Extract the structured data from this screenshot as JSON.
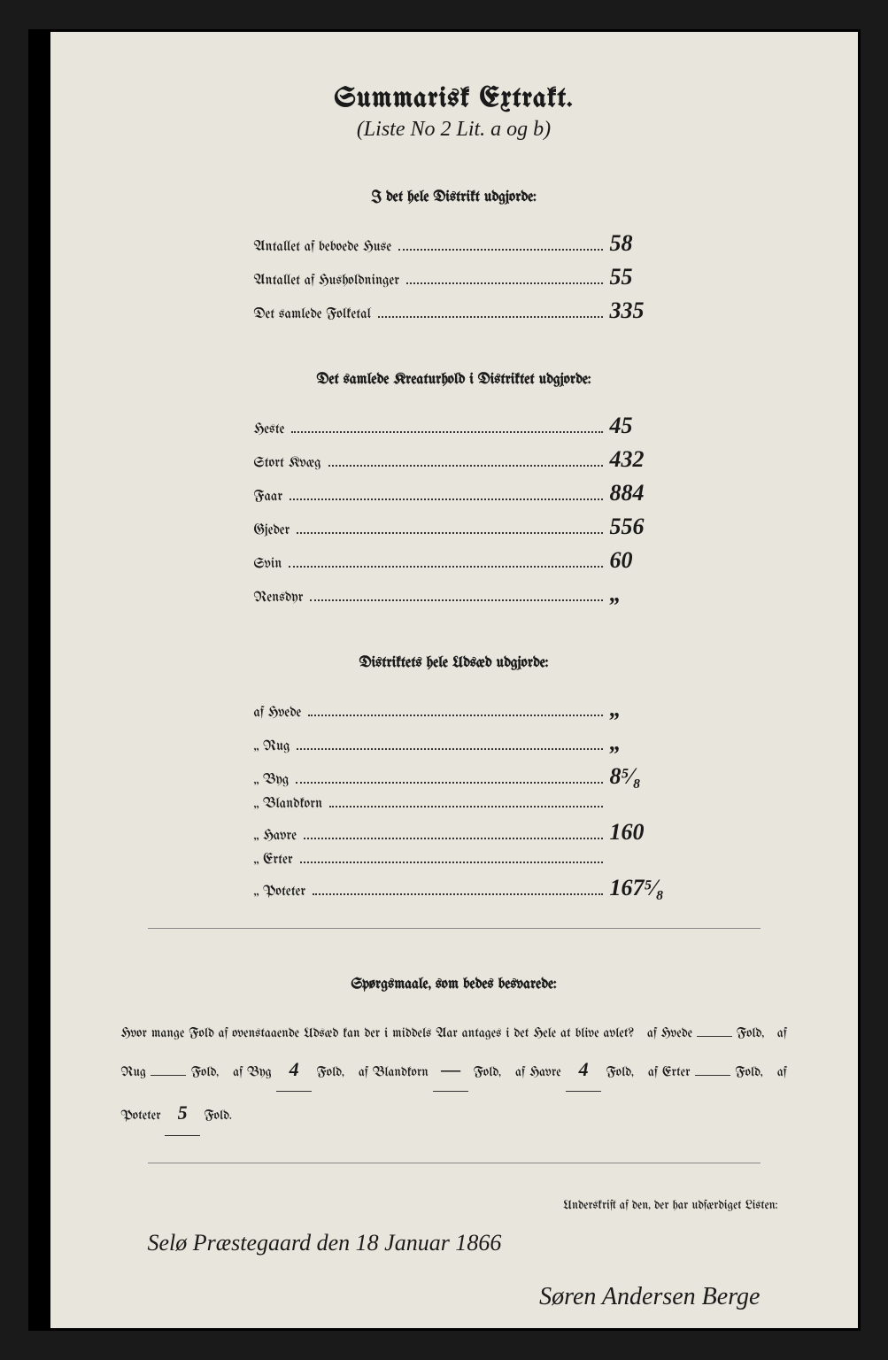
{
  "colors": {
    "paper": "#e8e6dc",
    "ink": "#1a1a1a",
    "frame": "#000000"
  },
  "header": {
    "title": "Summarisk Extrakt.",
    "subtitle": "(Liste No 2 Lit. a og b)"
  },
  "section1": {
    "heading": "I det hele Distrikt udgjorde:",
    "rows": [
      {
        "label": "Antallet af beboede Huse",
        "value": "58"
      },
      {
        "label": "Antallet af Husholdninger",
        "value": "55"
      },
      {
        "label": "Det samlede Folketal",
        "value": "335"
      }
    ]
  },
  "section2": {
    "heading": "Det samlede Kreaturhold i Distriktet udgjorde:",
    "rows": [
      {
        "label": "Heste",
        "value": "45"
      },
      {
        "label": "Stort Kvæg",
        "value": "432"
      },
      {
        "label": "Faar",
        "value": "884"
      },
      {
        "label": "Gjeder",
        "value": "556"
      },
      {
        "label": "Svin",
        "value": "60"
      },
      {
        "label": "Rensdyr",
        "value": "„"
      }
    ]
  },
  "section3": {
    "heading": "Distriktets hele Udsæd udgjorde:",
    "rows": [
      {
        "label": "af Hvede",
        "value": "„"
      },
      {
        "label": "„ Rug",
        "value": "„"
      },
      {
        "label": "„ Byg",
        "value": "8⁵⁄₈"
      },
      {
        "label": "„ Blandkorn",
        "value": ""
      },
      {
        "label": "„ Havre",
        "value": "160"
      },
      {
        "label": "„ Erter",
        "value": ""
      },
      {
        "label": "„ Poteter",
        "value": "167⁵⁄₈"
      }
    ]
  },
  "questions": {
    "heading": "Spørgsmaale, som bedes besvarede:",
    "lead": "Hvor mange Fold af ovenstaaende Udsæd kan der i middels Aar antages i det Hele at blive avlet?",
    "parts": [
      {
        "text": "af Hvede",
        "value": "",
        "suffix": "Fold,"
      },
      {
        "text": "af Rug",
        "value": "",
        "suffix": "Fold,"
      },
      {
        "text": "af Byg",
        "value": "4",
        "suffix": "Fold,"
      },
      {
        "text": "af Blandkorn",
        "value": "—",
        "suffix": "Fold,"
      },
      {
        "text": "af Havre",
        "value": "4",
        "suffix": "Fold,"
      },
      {
        "text": "af Erter",
        "value": "",
        "suffix": "Fold,"
      },
      {
        "text": "af Poteter",
        "value": "5",
        "suffix": "Fold."
      }
    ]
  },
  "signature_block": {
    "heading": "Underskrift af den, der har udfærdiget Listen:",
    "place_date": "Selø Præstegaard den 18 Januar 1866",
    "signature": "Søren Andersen Berge"
  }
}
